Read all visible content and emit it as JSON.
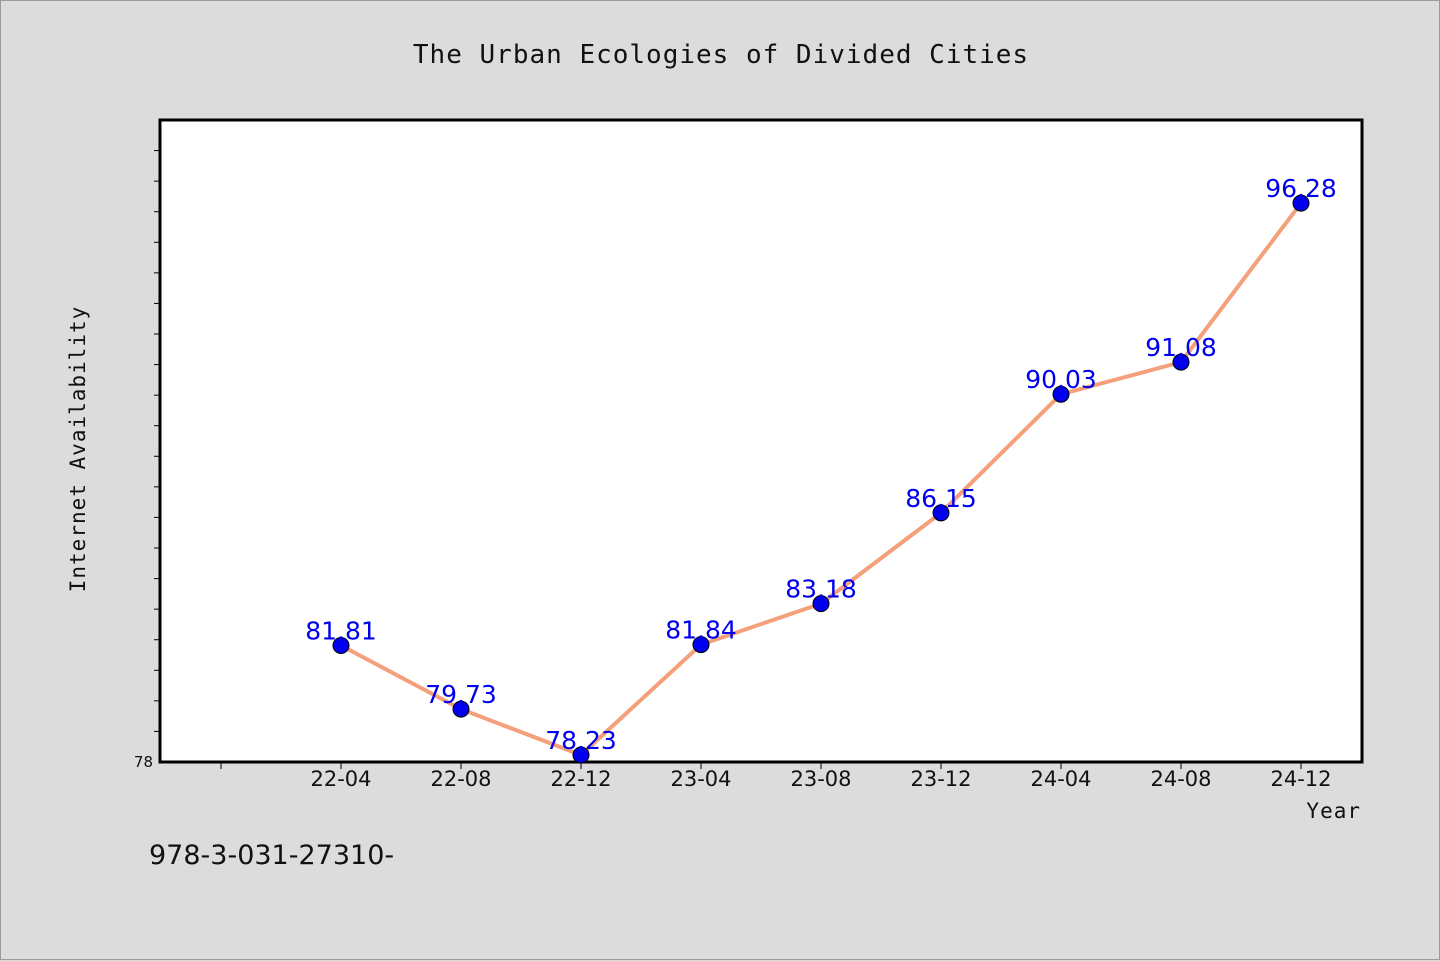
{
  "chart_data": {
    "type": "line",
    "title": "The Urban Ecologies of Divided Cities",
    "xlabel": "Year",
    "ylabel": "Internet Availability",
    "categories": [
      "22-04",
      "22-08",
      "22-12",
      "23-04",
      "23-08",
      "23-12",
      "24-04",
      "24-08",
      "24-12"
    ],
    "series": [
      {
        "values": [
          81.81,
          79.73,
          78.23,
          81.84,
          83.18,
          86.15,
          90.03,
          91.08,
          96.28
        ],
        "labels": [
          "81.81",
          "79.73",
          "78.23",
          "81.84",
          "83.18",
          "86.15",
          "90.03",
          "91.08",
          "96.28"
        ],
        "line_color": "#f4a07a",
        "marker_color": "#0000ee",
        "label_color": "#0000ee"
      }
    ],
    "y_tick_label": "78",
    "ylim": [
      78,
      99
    ],
    "grid": false,
    "legend": "none"
  },
  "footer": {
    "text": "978-3-031-27310-"
  }
}
